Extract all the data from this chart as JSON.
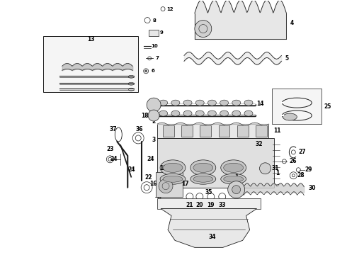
{
  "background_color": "#ffffff",
  "line_color": "#1a1a1a",
  "text_color": "#000000",
  "fig_width": 4.9,
  "fig_height": 3.6,
  "dpi": 100,
  "gray": "#aaaaaa",
  "lightgray": "#cccccc",
  "darkgray": "#666666"
}
